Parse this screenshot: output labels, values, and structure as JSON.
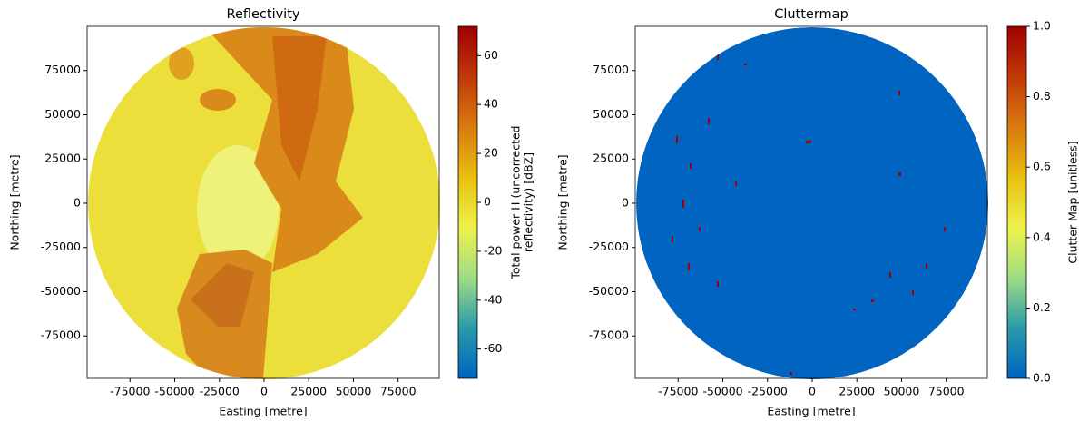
{
  "chart_data": [
    {
      "type": "image",
      "title": "Reflectivity",
      "xlabel": "Easting [metre]",
      "ylabel": "Northing [metre]",
      "xlim": [
        -99000,
        98000
      ],
      "ylim": [
        -99000,
        100000
      ],
      "xticks": [
        -75000,
        -50000,
        -25000,
        0,
        25000,
        50000,
        75000
      ],
      "yticks": [
        -75000,
        -50000,
        -25000,
        0,
        25000,
        50000,
        75000
      ],
      "colorbar": {
        "label": [
          "Total power H (uncorrected",
          "reflectivity) [dBZ]"
        ],
        "lim": [
          -72,
          72
        ],
        "ticks": [
          -60,
          -40,
          -20,
          0,
          20,
          40,
          60
        ],
        "colormap": [
          "#0064c0",
          "#2a9aa8",
          "#9fdc86",
          "#eef24a",
          "#e8c010",
          "#d87a10",
          "#c03808",
          "#a00000"
        ]
      }
    },
    {
      "type": "image",
      "title": "Cluttermap",
      "xlabel": "Easting [metre]",
      "ylabel": "Northing [metre]",
      "xlim": [
        -99000,
        98000
      ],
      "ylim": [
        -99000,
        100000
      ],
      "xticks": [
        -75000,
        -50000,
        -25000,
        0,
        25000,
        50000,
        75000
      ],
      "yticks": [
        -75000,
        -50000,
        -25000,
        0,
        25000,
        50000,
        75000
      ],
      "colorbar": {
        "label": [
          "Clutter Map [unitless]"
        ],
        "lim": [
          0,
          1
        ],
        "ticks": [
          {
            "value": 0,
            "label": "0.0"
          },
          {
            "value": 0.2,
            "label": "0.2"
          },
          {
            "value": 0.4,
            "label": "0.4"
          },
          {
            "value": 0.6,
            "label": "0.6"
          },
          {
            "value": 0.8,
            "label": "0.8"
          },
          {
            "value": 1,
            "label": "1.0"
          }
        ],
        "colormap": [
          "#0064c0",
          "#2a9aa8",
          "#9fdc86",
          "#eef24a",
          "#e8c010",
          "#d87a10",
          "#c03808",
          "#a00000"
        ]
      }
    }
  ]
}
